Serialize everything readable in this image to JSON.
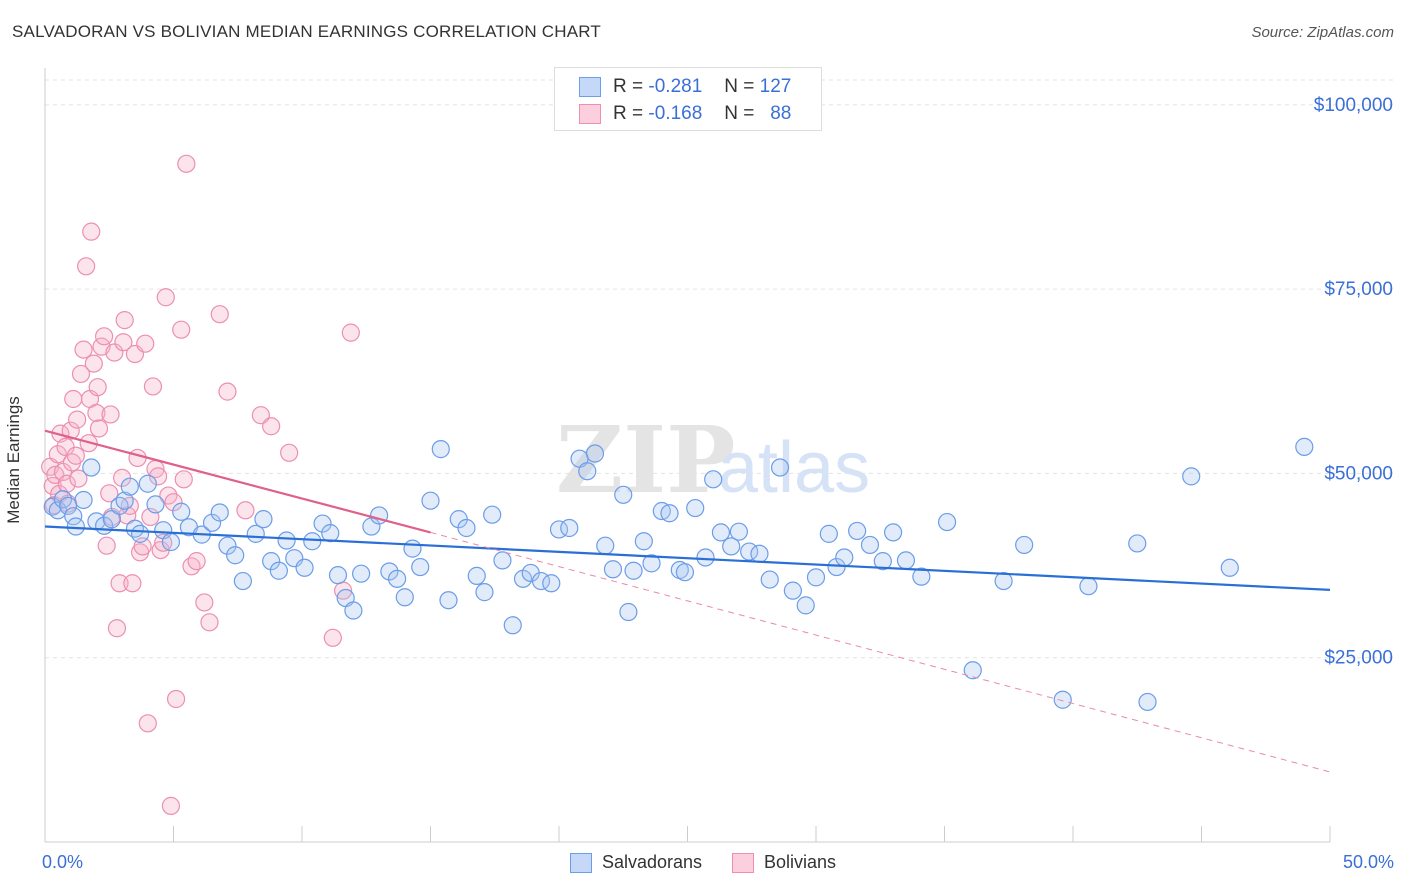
{
  "title": "SALVADORAN VS BOLIVIAN MEDIAN EARNINGS CORRELATION CHART",
  "source": "Source: ZipAtlas.com",
  "colors": {
    "blue": "#6b9de8",
    "blue_line": "#2a6fd6",
    "pink": "#f08db0",
    "pink_line": "#e0608a",
    "axis_text": "#3a6fd8"
  },
  "legend_box": {
    "rows": [
      {
        "r_label": "R =",
        "r_value": "-0.281",
        "n_label": "N =",
        "n_value": "127"
      },
      {
        "r_label": "R =",
        "r_value": "-0.168",
        "n_label": "N =",
        "n_value": "88"
      }
    ]
  },
  "x_axis": {
    "left_label": "0.0%",
    "right_label": "50.0%"
  },
  "chart_data": {
    "type": "scatter",
    "title": "SALVADORAN VS BOLIVIAN MEDIAN EARNINGS CORRELATION CHART",
    "xlabel": "",
    "ylabel": "Median Earnings",
    "xlim": [
      0,
      50
    ],
    "ylim": [
      0,
      105000
    ],
    "y_ticks": [
      25000,
      50000,
      75000,
      100000
    ],
    "y_tick_labels": [
      "$25,000",
      "$50,000",
      "$75,000",
      "$100,000"
    ],
    "x_tick_labels": [
      "0.0%",
      "50.0%"
    ],
    "grid": true,
    "legend_position": "bottom-center",
    "series": [
      {
        "name": "Salvadorans",
        "color": "#6b9de8",
        "R": -0.281,
        "N": 127,
        "trend": {
          "x": [
            0,
            50
          ],
          "y": [
            42800,
            34200
          ]
        },
        "points": [
          [
            0.3,
            45500
          ],
          [
            0.5,
            45000
          ],
          [
            0.7,
            46500
          ],
          [
            0.9,
            45600
          ],
          [
            1.1,
            44200
          ],
          [
            1.2,
            42800
          ],
          [
            1.5,
            46400
          ],
          [
            1.8,
            50800
          ],
          [
            2.0,
            43500
          ],
          [
            2.3,
            42900
          ],
          [
            2.6,
            43800
          ],
          [
            2.9,
            45600
          ],
          [
            3.1,
            46300
          ],
          [
            3.3,
            48200
          ],
          [
            3.5,
            42500
          ],
          [
            3.7,
            41800
          ],
          [
            4.0,
            48600
          ],
          [
            4.3,
            45800
          ],
          [
            4.6,
            42300
          ],
          [
            4.9,
            40700
          ],
          [
            5.3,
            44800
          ],
          [
            5.6,
            42700
          ],
          [
            6.1,
            41700
          ],
          [
            6.5,
            43300
          ],
          [
            6.8,
            44700
          ],
          [
            7.1,
            40200
          ],
          [
            7.4,
            38900
          ],
          [
            7.7,
            35400
          ],
          [
            8.2,
            41800
          ],
          [
            8.5,
            43800
          ],
          [
            8.8,
            38100
          ],
          [
            9.1,
            36800
          ],
          [
            9.4,
            40900
          ],
          [
            9.7,
            38500
          ],
          [
            10.1,
            37200
          ],
          [
            10.4,
            40800
          ],
          [
            10.8,
            43200
          ],
          [
            11.1,
            41900
          ],
          [
            11.4,
            36200
          ],
          [
            11.7,
            33100
          ],
          [
            12.0,
            31400
          ],
          [
            12.3,
            36400
          ],
          [
            12.7,
            42800
          ],
          [
            13.0,
            44300
          ],
          [
            13.4,
            36700
          ],
          [
            13.7,
            35700
          ],
          [
            14.0,
            33200
          ],
          [
            14.3,
            39800
          ],
          [
            14.6,
            37300
          ],
          [
            15.0,
            46300
          ],
          [
            15.4,
            53300
          ],
          [
            15.7,
            32800
          ],
          [
            16.1,
            43800
          ],
          [
            16.4,
            42600
          ],
          [
            16.8,
            36100
          ],
          [
            17.1,
            33900
          ],
          [
            17.4,
            44400
          ],
          [
            17.8,
            38200
          ],
          [
            18.2,
            29400
          ],
          [
            18.6,
            35700
          ],
          [
            18.9,
            36500
          ],
          [
            19.3,
            35400
          ],
          [
            19.7,
            35100
          ],
          [
            20.0,
            42400
          ],
          [
            20.4,
            42600
          ],
          [
            20.8,
            52000
          ],
          [
            21.1,
            50300
          ],
          [
            21.4,
            52700
          ],
          [
            21.8,
            40200
          ],
          [
            22.1,
            37000
          ],
          [
            22.5,
            47100
          ],
          [
            22.7,
            31200
          ],
          [
            22.9,
            36800
          ],
          [
            23.3,
            40800
          ],
          [
            23.6,
            37800
          ],
          [
            24.0,
            44900
          ],
          [
            24.3,
            44600
          ],
          [
            24.7,
            36900
          ],
          [
            24.9,
            36600
          ],
          [
            25.3,
            45300
          ],
          [
            25.7,
            38600
          ],
          [
            26.0,
            49200
          ],
          [
            26.3,
            42000
          ],
          [
            26.7,
            40100
          ],
          [
            27.0,
            42100
          ],
          [
            27.4,
            39400
          ],
          [
            27.8,
            39100
          ],
          [
            28.2,
            35600
          ],
          [
            28.6,
            50800
          ],
          [
            29.1,
            34100
          ],
          [
            29.6,
            32100
          ],
          [
            30.0,
            35900
          ],
          [
            30.5,
            41800
          ],
          [
            30.8,
            37300
          ],
          [
            31.1,
            38600
          ],
          [
            31.6,
            42200
          ],
          [
            32.1,
            40300
          ],
          [
            32.6,
            38100
          ],
          [
            33.0,
            42000
          ],
          [
            33.5,
            38200
          ],
          [
            34.1,
            36000
          ],
          [
            35.1,
            43400
          ],
          [
            36.1,
            23300
          ],
          [
            37.3,
            35400
          ],
          [
            38.1,
            40300
          ],
          [
            39.6,
            19300
          ],
          [
            40.6,
            34700
          ],
          [
            42.5,
            40500
          ],
          [
            42.9,
            19000
          ],
          [
            44.6,
            49600
          ],
          [
            46.1,
            37200
          ],
          [
            49.0,
            53600
          ]
        ]
      },
      {
        "name": "Bolivians",
        "color": "#f08db0",
        "R": -0.168,
        "N": 88,
        "trend": {
          "x": [
            0,
            15.0
          ],
          "y": [
            55800,
            42000
          ]
        },
        "trend_dashed": {
          "x": [
            15.0,
            50
          ],
          "y": [
            42000,
            9500
          ]
        },
        "points": [
          [
            0.2,
            50900
          ],
          [
            0.3,
            48300
          ],
          [
            0.35,
            45700
          ],
          [
            0.4,
            49800
          ],
          [
            0.5,
            52600
          ],
          [
            0.55,
            47200
          ],
          [
            0.6,
            55400
          ],
          [
            0.7,
            50200
          ],
          [
            0.8,
            53600
          ],
          [
            0.85,
            48600
          ],
          [
            0.9,
            45900
          ],
          [
            1.0,
            55800
          ],
          [
            1.05,
            51500
          ],
          [
            1.1,
            60100
          ],
          [
            1.2,
            52400
          ],
          [
            1.25,
            57300
          ],
          [
            1.3,
            49300
          ],
          [
            1.4,
            63500
          ],
          [
            1.5,
            66800
          ],
          [
            1.6,
            78100
          ],
          [
            1.7,
            54100
          ],
          [
            1.75,
            60100
          ],
          [
            1.8,
            82800
          ],
          [
            1.9,
            64900
          ],
          [
            2.0,
            58200
          ],
          [
            2.05,
            61700
          ],
          [
            2.1,
            56100
          ],
          [
            2.2,
            67200
          ],
          [
            2.3,
            68600
          ],
          [
            2.4,
            40200
          ],
          [
            2.5,
            47300
          ],
          [
            2.55,
            58000
          ],
          [
            2.6,
            44100
          ],
          [
            2.7,
            66400
          ],
          [
            2.8,
            29000
          ],
          [
            2.9,
            35100
          ],
          [
            3.0,
            49400
          ],
          [
            3.05,
            67800
          ],
          [
            3.1,
            70800
          ],
          [
            3.2,
            44300
          ],
          [
            3.3,
            45600
          ],
          [
            3.4,
            35100
          ],
          [
            3.5,
            66200
          ],
          [
            3.6,
            52100
          ],
          [
            3.7,
            39300
          ],
          [
            3.8,
            40100
          ],
          [
            3.9,
            67600
          ],
          [
            4.0,
            16100
          ],
          [
            4.1,
            44100
          ],
          [
            4.2,
            61800
          ],
          [
            4.3,
            50600
          ],
          [
            4.4,
            49600
          ],
          [
            4.5,
            39600
          ],
          [
            4.6,
            40600
          ],
          [
            4.7,
            73900
          ],
          [
            4.8,
            47000
          ],
          [
            4.9,
            4900
          ],
          [
            5.0,
            46100
          ],
          [
            5.1,
            19400
          ],
          [
            5.3,
            69500
          ],
          [
            5.4,
            49200
          ],
          [
            5.5,
            92000
          ],
          [
            5.7,
            37400
          ],
          [
            5.9,
            38100
          ],
          [
            6.2,
            32500
          ],
          [
            6.4,
            29800
          ],
          [
            6.8,
            71600
          ],
          [
            7.1,
            61100
          ],
          [
            7.8,
            45000
          ],
          [
            8.4,
            57900
          ],
          [
            8.8,
            56400
          ],
          [
            9.5,
            52800
          ],
          [
            11.2,
            27700
          ],
          [
            11.6,
            34100
          ],
          [
            11.9,
            69100
          ]
        ]
      }
    ]
  }
}
